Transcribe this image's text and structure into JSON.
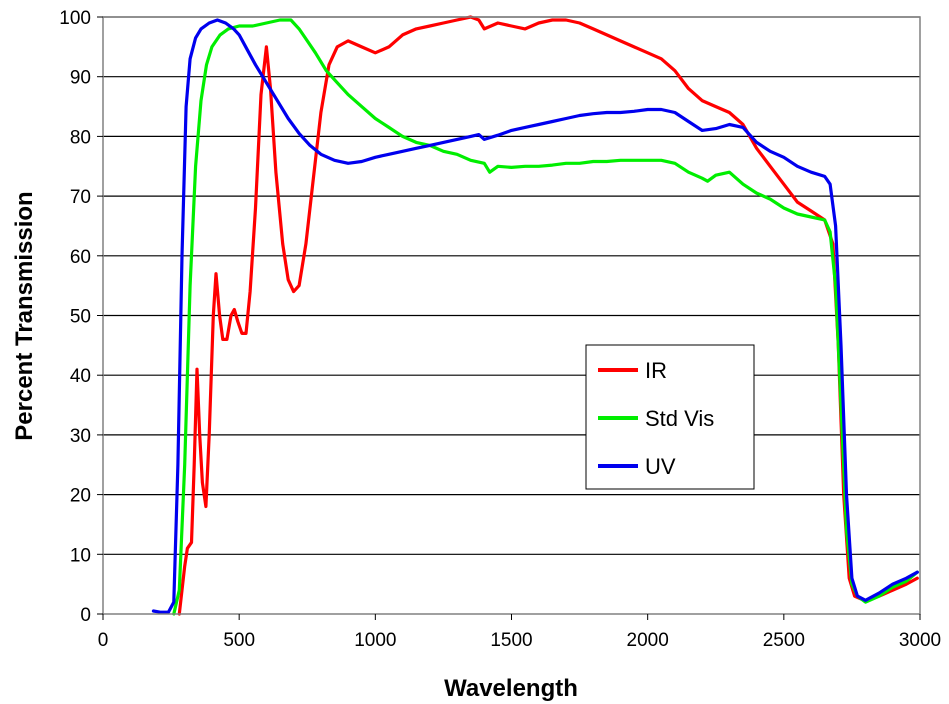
{
  "chart_data": {
    "type": "line",
    "xlabel": "Wavelength",
    "ylabel": "Percent Transmission",
    "xlim": [
      0,
      3000
    ],
    "ylim": [
      0,
      100
    ],
    "xticks": [
      0,
      500,
      1000,
      1500,
      2000,
      2500,
      3000
    ],
    "yticks": [
      0,
      10,
      20,
      30,
      40,
      50,
      60,
      70,
      80,
      90,
      100
    ],
    "grid": "horizontal",
    "legend_position": "center-right",
    "series": [
      {
        "name": "IR",
        "color": "#ff0000",
        "points": [
          [
            280,
            0
          ],
          [
            300,
            8
          ],
          [
            310,
            11
          ],
          [
            325,
            12
          ],
          [
            335,
            25
          ],
          [
            345,
            41
          ],
          [
            355,
            30
          ],
          [
            365,
            22
          ],
          [
            378,
            18
          ],
          [
            390,
            30
          ],
          [
            405,
            50
          ],
          [
            415,
            57
          ],
          [
            428,
            50
          ],
          [
            440,
            46
          ],
          [
            455,
            46
          ],
          [
            470,
            50
          ],
          [
            482,
            51
          ],
          [
            495,
            49
          ],
          [
            510,
            47
          ],
          [
            525,
            47
          ],
          [
            540,
            54
          ],
          [
            560,
            68
          ],
          [
            580,
            87
          ],
          [
            600,
            95
          ],
          [
            615,
            88
          ],
          [
            635,
            74
          ],
          [
            660,
            62
          ],
          [
            680,
            56
          ],
          [
            700,
            54
          ],
          [
            720,
            55
          ],
          [
            745,
            62
          ],
          [
            770,
            72
          ],
          [
            800,
            84
          ],
          [
            830,
            92
          ],
          [
            860,
            95
          ],
          [
            900,
            96
          ],
          [
            950,
            95
          ],
          [
            1000,
            94
          ],
          [
            1050,
            95
          ],
          [
            1100,
            97
          ],
          [
            1150,
            98
          ],
          [
            1200,
            98.5
          ],
          [
            1250,
            99
          ],
          [
            1300,
            99.5
          ],
          [
            1350,
            100
          ],
          [
            1380,
            99.5
          ],
          [
            1400,
            98
          ],
          [
            1450,
            99
          ],
          [
            1500,
            98.5
          ],
          [
            1550,
            98
          ],
          [
            1600,
            99
          ],
          [
            1650,
            99.5
          ],
          [
            1700,
            99.5
          ],
          [
            1750,
            99
          ],
          [
            1800,
            98
          ],
          [
            1850,
            97
          ],
          [
            1900,
            96
          ],
          [
            1950,
            95
          ],
          [
            2000,
            94
          ],
          [
            2050,
            93
          ],
          [
            2100,
            91
          ],
          [
            2150,
            88
          ],
          [
            2200,
            86
          ],
          [
            2250,
            85
          ],
          [
            2300,
            84
          ],
          [
            2350,
            82
          ],
          [
            2400,
            78
          ],
          [
            2450,
            75
          ],
          [
            2500,
            72
          ],
          [
            2550,
            69
          ],
          [
            2600,
            67.5
          ],
          [
            2650,
            66
          ],
          [
            2680,
            62
          ],
          [
            2700,
            45
          ],
          [
            2720,
            20
          ],
          [
            2740,
            6
          ],
          [
            2760,
            3
          ],
          [
            2800,
            2.2
          ],
          [
            2850,
            3
          ],
          [
            2900,
            4
          ],
          [
            2950,
            5
          ],
          [
            2990,
            6
          ]
        ]
      },
      {
        "name": "Std Vis",
        "color": "#00ee00",
        "points": [
          [
            260,
            0
          ],
          [
            280,
            4
          ],
          [
            300,
            25
          ],
          [
            320,
            55
          ],
          [
            340,
            75
          ],
          [
            360,
            86
          ],
          [
            380,
            92
          ],
          [
            400,
            95
          ],
          [
            430,
            97
          ],
          [
            460,
            98
          ],
          [
            500,
            98.5
          ],
          [
            550,
            98.5
          ],
          [
            600,
            99
          ],
          [
            650,
            99.5
          ],
          [
            690,
            99.5
          ],
          [
            720,
            98
          ],
          [
            750,
            96
          ],
          [
            780,
            94
          ],
          [
            820,
            91
          ],
          [
            860,
            89
          ],
          [
            900,
            87
          ],
          [
            950,
            85
          ],
          [
            1000,
            83
          ],
          [
            1050,
            81.5
          ],
          [
            1100,
            80
          ],
          [
            1150,
            79
          ],
          [
            1200,
            78.5
          ],
          [
            1250,
            77.5
          ],
          [
            1300,
            77
          ],
          [
            1350,
            76
          ],
          [
            1400,
            75.5
          ],
          [
            1420,
            74
          ],
          [
            1450,
            75
          ],
          [
            1500,
            74.8
          ],
          [
            1550,
            75
          ],
          [
            1600,
            75
          ],
          [
            1650,
            75.2
          ],
          [
            1700,
            75.5
          ],
          [
            1750,
            75.5
          ],
          [
            1800,
            75.8
          ],
          [
            1850,
            75.8
          ],
          [
            1900,
            76
          ],
          [
            1950,
            76
          ],
          [
            2000,
            76
          ],
          [
            2050,
            76
          ],
          [
            2100,
            75.5
          ],
          [
            2150,
            74
          ],
          [
            2200,
            73
          ],
          [
            2220,
            72.5
          ],
          [
            2250,
            73.5
          ],
          [
            2300,
            74
          ],
          [
            2350,
            72
          ],
          [
            2400,
            70.5
          ],
          [
            2450,
            69.5
          ],
          [
            2500,
            68
          ],
          [
            2550,
            67
          ],
          [
            2600,
            66.5
          ],
          [
            2650,
            66
          ],
          [
            2670,
            64
          ],
          [
            2690,
            55
          ],
          [
            2710,
            35
          ],
          [
            2730,
            14
          ],
          [
            2750,
            5
          ],
          [
            2770,
            3
          ],
          [
            2800,
            2
          ],
          [
            2850,
            3
          ],
          [
            2900,
            4.5
          ],
          [
            2950,
            5.5
          ],
          [
            2990,
            7
          ]
        ]
      },
      {
        "name": "UV",
        "color": "#0000ee",
        "points": [
          [
            185,
            0.5
          ],
          [
            210,
            0.3
          ],
          [
            240,
            0.3
          ],
          [
            260,
            2
          ],
          [
            275,
            25
          ],
          [
            290,
            60
          ],
          [
            305,
            85
          ],
          [
            320,
            93
          ],
          [
            340,
            96.5
          ],
          [
            360,
            98
          ],
          [
            390,
            99
          ],
          [
            420,
            99.5
          ],
          [
            450,
            99
          ],
          [
            480,
            98
          ],
          [
            500,
            97
          ],
          [
            530,
            94.5
          ],
          [
            560,
            92
          ],
          [
            600,
            89
          ],
          [
            640,
            86
          ],
          [
            680,
            83
          ],
          [
            720,
            80.5
          ],
          [
            760,
            78.5
          ],
          [
            800,
            77
          ],
          [
            850,
            76
          ],
          [
            900,
            75.5
          ],
          [
            950,
            75.8
          ],
          [
            1000,
            76.5
          ],
          [
            1050,
            77
          ],
          [
            1100,
            77.5
          ],
          [
            1150,
            78
          ],
          [
            1200,
            78.5
          ],
          [
            1250,
            79
          ],
          [
            1300,
            79.5
          ],
          [
            1350,
            80
          ],
          [
            1380,
            80.3
          ],
          [
            1400,
            79.5
          ],
          [
            1450,
            80.2
          ],
          [
            1500,
            81
          ],
          [
            1550,
            81.5
          ],
          [
            1600,
            82
          ],
          [
            1650,
            82.5
          ],
          [
            1700,
            83
          ],
          [
            1750,
            83.5
          ],
          [
            1800,
            83.8
          ],
          [
            1850,
            84
          ],
          [
            1900,
            84
          ],
          [
            1950,
            84.2
          ],
          [
            2000,
            84.5
          ],
          [
            2050,
            84.5
          ],
          [
            2100,
            84
          ],
          [
            2150,
            82.5
          ],
          [
            2200,
            81
          ],
          [
            2250,
            81.3
          ],
          [
            2300,
            82
          ],
          [
            2350,
            81.5
          ],
          [
            2400,
            79
          ],
          [
            2450,
            77.5
          ],
          [
            2500,
            76.5
          ],
          [
            2550,
            75
          ],
          [
            2600,
            74
          ],
          [
            2650,
            73.3
          ],
          [
            2670,
            72
          ],
          [
            2690,
            65
          ],
          [
            2710,
            45
          ],
          [
            2730,
            20
          ],
          [
            2750,
            6
          ],
          [
            2770,
            3
          ],
          [
            2800,
            2.3
          ],
          [
            2850,
            3.5
          ],
          [
            2900,
            5
          ],
          [
            2950,
            6
          ],
          [
            2990,
            7
          ]
        ]
      }
    ]
  }
}
